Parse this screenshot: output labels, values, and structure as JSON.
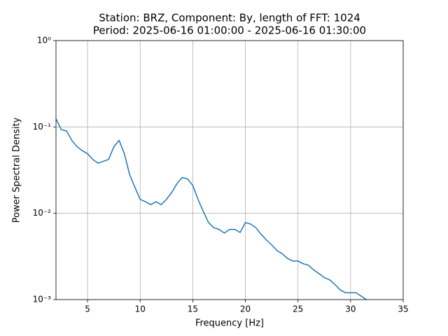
{
  "chart_data": {
    "type": "line",
    "title": "Station: BRZ, Component: By, length of FFT: 1024",
    "subtitle": "Period: 2025-06-16 01:00:00 - 2025-06-16 01:30:00",
    "xlabel": "Frequency [Hz]",
    "ylabel": "Power Spectral Density",
    "x": [
      2,
      2.5,
      3,
      3.5,
      4,
      4.5,
      5,
      5.5,
      6,
      6.5,
      7,
      7.5,
      8,
      8.5,
      9,
      9.5,
      10,
      10.5,
      11,
      11.5,
      12,
      12.5,
      13,
      13.5,
      14,
      14.5,
      15,
      15.5,
      16,
      16.5,
      17,
      17.5,
      18,
      18.5,
      19,
      19.5,
      20,
      20.5,
      21,
      21.5,
      22,
      22.5,
      23,
      23.5,
      24,
      24.5,
      25,
      25.5,
      26,
      26.5,
      27,
      27.5,
      28,
      28.5,
      29,
      29.5,
      30,
      30.5,
      31,
      31.5
    ],
    "values": [
      0.124,
      0.093,
      0.09,
      0.07,
      0.059,
      0.053,
      0.049,
      0.042,
      0.038,
      0.04,
      0.042,
      0.059,
      0.07,
      0.049,
      0.028,
      0.02,
      0.0145,
      0.0136,
      0.0126,
      0.0136,
      0.0126,
      0.0145,
      0.0174,
      0.0221,
      0.026,
      0.025,
      0.021,
      0.0145,
      0.0105,
      0.0078,
      0.0068,
      0.0065,
      0.0059,
      0.0065,
      0.0065,
      0.006,
      0.0078,
      0.0075,
      0.0068,
      0.0057,
      0.0049,
      0.0043,
      0.0037,
      0.0034,
      0.003,
      0.0028,
      0.0028,
      0.0026,
      0.0025,
      0.0022,
      0.002,
      0.0018,
      0.0017,
      0.0015,
      0.0013,
      0.0012,
      0.0012,
      0.0012,
      0.0011,
      0.001
    ],
    "color": "#1f77b4",
    "xlim": [
      2,
      35
    ],
    "xticks": [
      5,
      10,
      15,
      20,
      25,
      30,
      35
    ],
    "ylim": [
      0.001,
      1
    ],
    "log_y": true,
    "yticks": [
      {
        "value": 0.001,
        "label": "10⁻³"
      },
      {
        "value": 0.01,
        "label": "10⁻²"
      },
      {
        "value": 0.1,
        "label": "10⁻¹"
      },
      {
        "value": 1,
        "label": "10⁰"
      }
    ],
    "grid": true
  }
}
